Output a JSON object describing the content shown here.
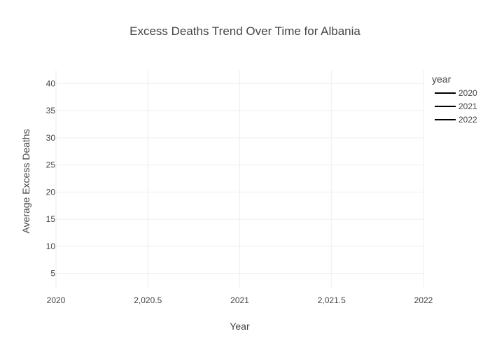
{
  "chart_data": {
    "type": "line",
    "title": "Excess Deaths Trend Over Time for Albania",
    "xlabel": "Year",
    "ylabel": "Average Excess Deaths",
    "x_ticks": [
      "2020",
      "2,020.5",
      "2021",
      "2,021.5",
      "2022"
    ],
    "x_tick_values": [
      2020,
      2020.5,
      2021,
      2021.5,
      2022
    ],
    "y_ticks": [
      "5",
      "10",
      "15",
      "20",
      "25",
      "30",
      "35",
      "40"
    ],
    "y_tick_values": [
      5,
      10,
      15,
      20,
      25,
      30,
      35,
      40
    ],
    "xlim": [
      2020,
      2022
    ],
    "ylim": [
      2.5,
      42.5
    ],
    "grid": true,
    "legend": {
      "title": "year",
      "position": "top-right"
    },
    "series": [
      {
        "name": "2020",
        "color": "#000000",
        "x": [],
        "y": []
      },
      {
        "name": "2021",
        "color": "#000000",
        "x": [],
        "y": []
      },
      {
        "name": "2022",
        "color": "#000000",
        "x": [],
        "y": []
      }
    ],
    "colors": {
      "grid": "#eeeeee",
      "text": "#444444",
      "title": "#444444"
    }
  }
}
